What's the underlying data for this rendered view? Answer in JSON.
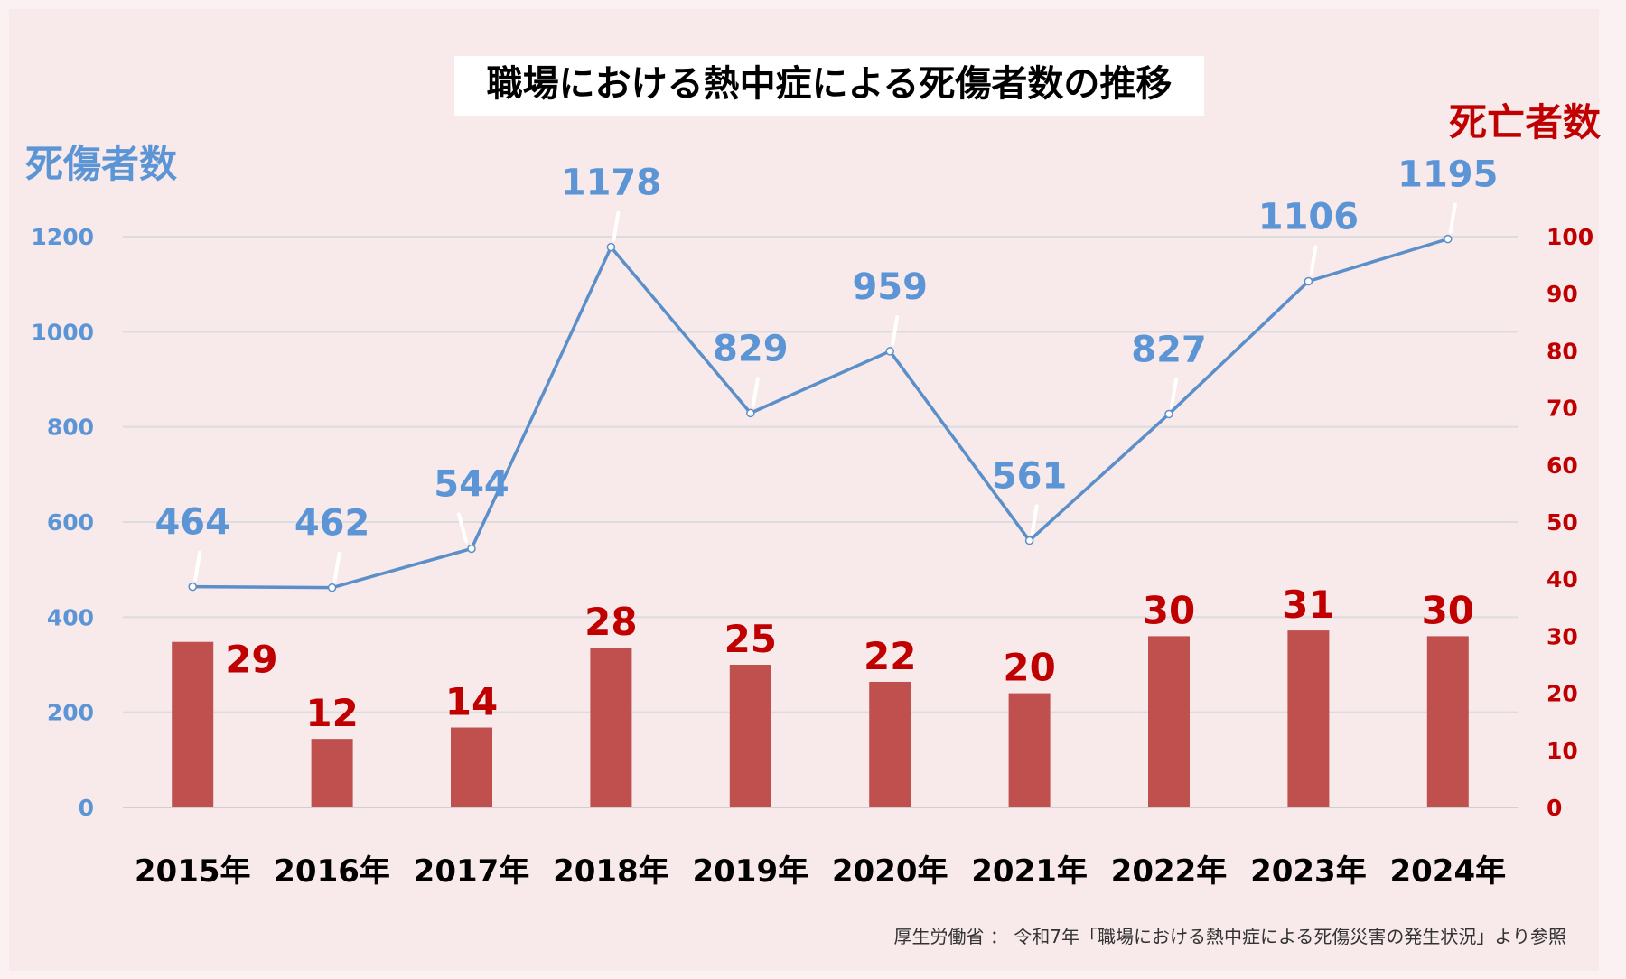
{
  "chart_data": {
    "type": "bar+line",
    "title": "職場における熱中症による死傷者数の推移",
    "categories": [
      "2015年",
      "2016年",
      "2017年",
      "2018年",
      "2019年",
      "2020年",
      "2021年",
      "2022年",
      "2023年",
      "2024年"
    ],
    "series": [
      {
        "name": "死傷者数",
        "type": "line",
        "axis": "left",
        "values": [
          464,
          462,
          544,
          1178,
          829,
          959,
          561,
          827,
          1106,
          1195
        ]
      },
      {
        "name": "死亡者数",
        "type": "bar",
        "axis": "right",
        "values": [
          29,
          12,
          14,
          28,
          25,
          22,
          20,
          30,
          31,
          30
        ]
      }
    ],
    "y_left": {
      "label": "死傷者数",
      "min": 0,
      "max": 1200,
      "ticks": [
        0,
        200,
        400,
        600,
        800,
        1000,
        1200
      ]
    },
    "y_right": {
      "label": "死亡者数",
      "min": 0,
      "max": 100,
      "ticks": [
        0,
        10,
        20,
        30,
        40,
        50,
        60,
        70,
        80,
        90,
        100
      ]
    },
    "grid": true,
    "legend": "none",
    "source": "厚生労働省 ： 令和7年「職場における熱中症による死傷災害の発生状況」より参照",
    "colors": {
      "line": "#5b8fc9",
      "line_label": "#5b95d6",
      "bar": "#c0504d",
      "bar_label": "#c00000",
      "left_axis": "#5b95d6",
      "right_axis": "#c00000",
      "background": "#fbf1f2",
      "panel": "#f8e9ea"
    }
  }
}
